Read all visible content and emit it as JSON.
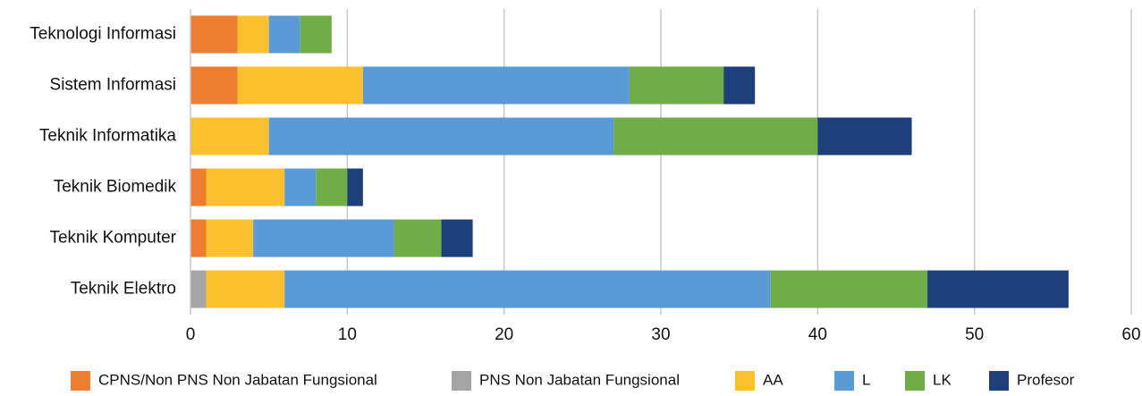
{
  "chart_data": {
    "type": "bar",
    "orientation": "horizontal",
    "stacked": true,
    "title": "",
    "xlabel": "",
    "ylabel": "",
    "xlim": [
      0,
      60
    ],
    "xticks": [
      "0",
      "10",
      "20",
      "30",
      "40",
      "50",
      "60"
    ],
    "grid": "vertical",
    "legend_position": "bottom",
    "categories": [
      "Teknologi Informasi",
      "Sistem Informasi",
      "Teknik Informatika",
      "Teknik Biomedik",
      "Teknik Komputer",
      "Teknik Elektro"
    ],
    "series": [
      {
        "name": "CPNS/Non PNS Non Jabatan Fungsional",
        "color": "#ED7D31",
        "values": [
          3,
          3,
          0,
          1,
          1,
          0
        ]
      },
      {
        "name": "PNS Non Jabatan Fungsional",
        "color": "#A5A5A5",
        "values": [
          0,
          0,
          0,
          0,
          0,
          1
        ]
      },
      {
        "name": "AA",
        "color": "#FBC02D",
        "values": [
          2,
          8,
          5,
          5,
          3,
          5
        ]
      },
      {
        "name": "L",
        "color": "#5B9BD5",
        "values": [
          2,
          17,
          22,
          2,
          9,
          31
        ]
      },
      {
        "name": "LK",
        "color": "#70AD47",
        "values": [
          2,
          6,
          13,
          2,
          3,
          10
        ]
      },
      {
        "name": "Profesor",
        "color": "#1F3F7A",
        "values": [
          0,
          2,
          6,
          1,
          2,
          9
        ]
      }
    ]
  }
}
